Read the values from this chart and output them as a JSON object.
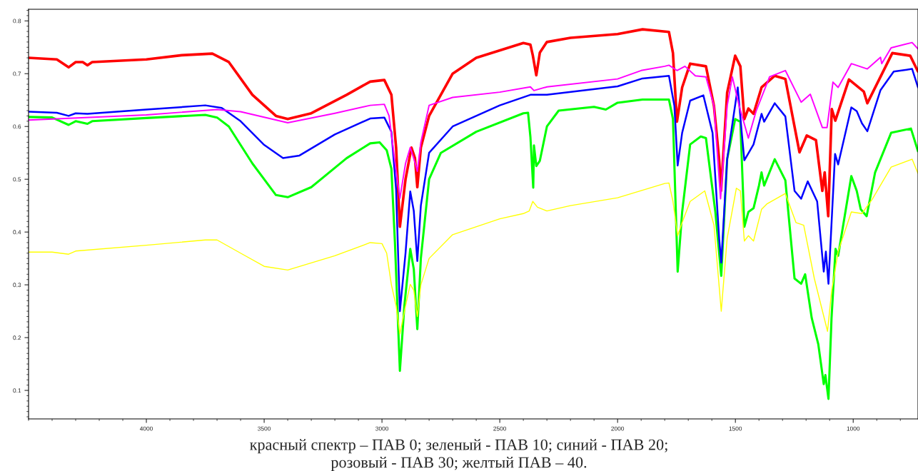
{
  "chart_data": {
    "type": "line",
    "xlim": [
      4500,
      725
    ],
    "ylim": [
      0.046,
      0.822
    ],
    "xticks": [
      4000,
      3500,
      3000,
      2500,
      2000,
      1500,
      1000
    ],
    "yticks": [
      0.1,
      0.2,
      0.3,
      0.4,
      0.5,
      0.6,
      0.7,
      0.8
    ],
    "grid": false,
    "marker": "none",
    "line_style": "solid",
    "annotations": [
      "красный спектр – ПАВ 0; зеленый - ПАВ 10; синий - ПАВ 20;\nрозовый - ПАВ 30; желтый ПАВ – 40."
    ],
    "series": [
      {
        "color": "#ff0000",
        "x": [
          4500,
          4380,
          4330,
          4300,
          4270,
          4250,
          4230,
          4000,
          3850,
          3720,
          3650,
          3550,
          3450,
          3400,
          3300,
          3150,
          3050,
          2990,
          2960,
          2940,
          2924,
          2900,
          2875,
          2860,
          2850,
          2835,
          2800,
          2700,
          2600,
          2400,
          2370,
          2360,
          2345,
          2330,
          2300,
          2200,
          2000,
          1894,
          1782,
          1765,
          1748,
          1726,
          1692,
          1625,
          1591,
          1569,
          1561,
          1535,
          1501,
          1479,
          1462,
          1445,
          1423,
          1389,
          1333,
          1288,
          1228,
          1197,
          1158,
          1131,
          1121,
          1106,
          1091,
          1076,
          1018,
          955,
          940,
          834,
          758,
          725
        ],
        "values": [
          0.73,
          0.727,
          0.712,
          0.722,
          0.722,
          0.716,
          0.722,
          0.727,
          0.735,
          0.738,
          0.722,
          0.66,
          0.62,
          0.614,
          0.625,
          0.66,
          0.685,
          0.688,
          0.66,
          0.56,
          0.41,
          0.5,
          0.56,
          0.54,
          0.485,
          0.56,
          0.62,
          0.7,
          0.73,
          0.758,
          0.755,
          0.735,
          0.697,
          0.74,
          0.76,
          0.768,
          0.775,
          0.784,
          0.779,
          0.739,
          0.609,
          0.674,
          0.719,
          0.714,
          0.639,
          0.538,
          0.478,
          0.664,
          0.734,
          0.714,
          0.614,
          0.634,
          0.624,
          0.674,
          0.696,
          0.69,
          0.551,
          0.583,
          0.574,
          0.478,
          0.513,
          0.43,
          0.633,
          0.611,
          0.689,
          0.666,
          0.644,
          0.739,
          0.734,
          0.704
        ]
      },
      {
        "color": "#00ff00",
        "x": [
          4500,
          4400,
          4330,
          4300,
          4250,
          4230,
          4000,
          3750,
          3700,
          3650,
          3550,
          3450,
          3400,
          3300,
          3150,
          3050,
          3010,
          2980,
          2960,
          2945,
          2924,
          2905,
          2880,
          2865,
          2850,
          2835,
          2800,
          2750,
          2600,
          2400,
          2380,
          2370,
          2358,
          2355,
          2345,
          2330,
          2300,
          2250,
          2100,
          2050,
          2000,
          1894,
          1782,
          1765,
          1745,
          1726,
          1692,
          1647,
          1625,
          1585,
          1560,
          1535,
          1501,
          1479,
          1462,
          1445,
          1423,
          1400,
          1389,
          1378,
          1333,
          1288,
          1249,
          1221,
          1204,
          1176,
          1148,
          1125,
          1118,
          1105,
          1092,
          1075,
          1064,
          1008,
          985,
          968,
          943,
          907,
          839,
          755,
          725
        ],
        "values": [
          0.618,
          0.617,
          0.603,
          0.61,
          0.605,
          0.61,
          0.616,
          0.622,
          0.617,
          0.6,
          0.53,
          0.47,
          0.466,
          0.485,
          0.54,
          0.568,
          0.57,
          0.555,
          0.52,
          0.38,
          0.137,
          0.26,
          0.368,
          0.33,
          0.216,
          0.35,
          0.5,
          0.55,
          0.59,
          0.625,
          0.626,
          0.58,
          0.484,
          0.564,
          0.525,
          0.535,
          0.6,
          0.63,
          0.637,
          0.632,
          0.645,
          0.651,
          0.651,
          0.614,
          0.325,
          0.438,
          0.566,
          0.581,
          0.578,
          0.438,
          0.317,
          0.538,
          0.614,
          0.609,
          0.41,
          0.438,
          0.445,
          0.488,
          0.513,
          0.488,
          0.538,
          0.498,
          0.312,
          0.302,
          0.32,
          0.237,
          0.187,
          0.112,
          0.129,
          0.084,
          0.237,
          0.368,
          0.355,
          0.506,
          0.478,
          0.443,
          0.43,
          0.513,
          0.588,
          0.596,
          0.553
        ]
      },
      {
        "color": "#0000ff",
        "x": [
          4500,
          4380,
          4330,
          4300,
          4250,
          4000,
          3750,
          3680,
          3600,
          3500,
          3420,
          3350,
          3200,
          3050,
          2990,
          2960,
          2940,
          2924,
          2900,
          2880,
          2865,
          2850,
          2835,
          2800,
          2700,
          2500,
          2370,
          2300,
          2000,
          1894,
          1782,
          1759,
          1745,
          1726,
          1692,
          1636,
          1597,
          1569,
          1560,
          1535,
          1490,
          1473,
          1462,
          1423,
          1389,
          1378,
          1333,
          1288,
          1249,
          1221,
          1193,
          1153,
          1125,
          1116,
          1105,
          1077,
          1064,
          1008,
          985,
          963,
          940,
          884,
          828,
          750,
          725
        ],
        "values": [
          0.628,
          0.626,
          0.62,
          0.625,
          0.624,
          0.632,
          0.64,
          0.635,
          0.61,
          0.565,
          0.54,
          0.545,
          0.585,
          0.615,
          0.617,
          0.59,
          0.48,
          0.25,
          0.36,
          0.477,
          0.44,
          0.345,
          0.45,
          0.55,
          0.6,
          0.64,
          0.66,
          0.66,
          0.676,
          0.691,
          0.696,
          0.639,
          0.526,
          0.588,
          0.649,
          0.659,
          0.588,
          0.388,
          0.342,
          0.538,
          0.674,
          0.588,
          0.536,
          0.566,
          0.624,
          0.609,
          0.644,
          0.619,
          0.478,
          0.463,
          0.496,
          0.458,
          0.325,
          0.363,
          0.302,
          0.548,
          0.528,
          0.636,
          0.629,
          0.606,
          0.591,
          0.669,
          0.704,
          0.709,
          0.674
        ]
      },
      {
        "color": "#ff00ff",
        "x": [
          4500,
          4000,
          3700,
          3600,
          3400,
          3200,
          3050,
          2990,
          2970,
          2950,
          2924,
          2900,
          2880,
          2860,
          2850,
          2835,
          2800,
          2700,
          2500,
          2370,
          2355,
          2300,
          2000,
          1900,
          1800,
          1782,
          1748,
          1714,
          1670,
          1625,
          1591,
          1563,
          1535,
          1513,
          1484,
          1445,
          1412,
          1355,
          1288,
          1221,
          1182,
          1131,
          1111,
          1086,
          1064,
          1008,
          940,
          884,
          879,
          839,
          750,
          725
        ],
        "values": [
          0.612,
          0.622,
          0.632,
          0.628,
          0.607,
          0.625,
          0.64,
          0.642,
          0.62,
          0.55,
          0.464,
          0.53,
          0.56,
          0.532,
          0.515,
          0.57,
          0.64,
          0.655,
          0.665,
          0.675,
          0.668,
          0.675,
          0.69,
          0.706,
          0.714,
          0.716,
          0.706,
          0.714,
          0.696,
          0.694,
          0.639,
          0.463,
          0.639,
          0.694,
          0.639,
          0.578,
          0.629,
          0.694,
          0.706,
          0.646,
          0.661,
          0.598,
          0.598,
          0.684,
          0.674,
          0.719,
          0.709,
          0.731,
          0.719,
          0.749,
          0.759,
          0.747
        ]
      },
      {
        "color": "#ffff00",
        "x": [
          4500,
          4400,
          4330,
          4300,
          4000,
          3750,
          3700,
          3600,
          3500,
          3400,
          3200,
          3050,
          3000,
          2980,
          2960,
          2940,
          2924,
          2900,
          2880,
          2865,
          2850,
          2835,
          2800,
          2700,
          2500,
          2400,
          2375,
          2360,
          2340,
          2300,
          2200,
          2000,
          1800,
          1782,
          1765,
          1745,
          1726,
          1692,
          1630,
          1591,
          1560,
          1535,
          1496,
          1479,
          1462,
          1445,
          1423,
          1389,
          1367,
          1288,
          1243,
          1210,
          1165,
          1109,
          1092,
          1064,
          1008,
          963,
          918,
          839,
          750,
          725
        ],
        "values": [
          0.362,
          0.362,
          0.358,
          0.364,
          0.375,
          0.385,
          0.385,
          0.36,
          0.335,
          0.328,
          0.355,
          0.38,
          0.378,
          0.36,
          0.3,
          0.26,
          0.207,
          0.26,
          0.301,
          0.29,
          0.24,
          0.3,
          0.35,
          0.395,
          0.425,
          0.435,
          0.44,
          0.458,
          0.447,
          0.44,
          0.45,
          0.465,
          0.492,
          0.493,
          0.458,
          0.393,
          0.418,
          0.458,
          0.478,
          0.413,
          0.25,
          0.388,
          0.483,
          0.478,
          0.383,
          0.393,
          0.383,
          0.443,
          0.453,
          0.473,
          0.418,
          0.413,
          0.312,
          0.212,
          0.287,
          0.363,
          0.438,
          0.435,
          0.463,
          0.523,
          0.538,
          0.511
        ]
      }
    ]
  }
}
